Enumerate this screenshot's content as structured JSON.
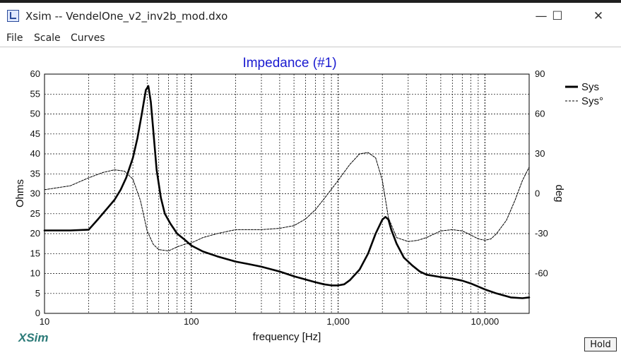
{
  "window": {
    "title": "Xsim -- VendelOne_v2_inv2b_mod.dxo",
    "minimize_glyph": "—",
    "maximize_glyph": "☐",
    "close_glyph": "✕"
  },
  "menu": [
    "File",
    "Scale",
    "Curves"
  ],
  "footer": {
    "logo": "XSim",
    "hold_label": "Hold"
  },
  "chart_data": {
    "type": "line",
    "title": "Impedance (#1)",
    "xlabel": "frequency [Hz]",
    "ylabel": "Ohms",
    "y2label": "deg",
    "x_scale": "log",
    "xlim": [
      10,
      20000
    ],
    "ylim": [
      0,
      60
    ],
    "y2lim": [
      -90,
      90
    ],
    "x_ticks": [
      10,
      100,
      1000,
      10000
    ],
    "x_tick_labels": [
      "10",
      "100",
      "1,000",
      "10,000"
    ],
    "y_ticks": [
      0,
      5,
      10,
      15,
      20,
      25,
      30,
      35,
      40,
      45,
      50,
      55,
      60
    ],
    "y_tick_labels": [
      "0",
      "5",
      "10",
      "15",
      "20",
      "25",
      "30",
      "35",
      "40",
      "45",
      "50",
      "55",
      "60"
    ],
    "y2_ticks": [
      -60,
      -30,
      0,
      30,
      60,
      90
    ],
    "y2_tick_labels": [
      "-60",
      "-30",
      "0",
      "30",
      "60",
      "90"
    ],
    "grid": true,
    "legend_position": "top-right",
    "colors": {
      "title": "#1a1ad0",
      "logo": "#2b7a78"
    },
    "series": [
      {
        "name": "Sys",
        "axis": "left",
        "style": "solid-thick",
        "x": [
          10,
          15,
          20,
          23,
          27,
          30,
          33,
          36,
          40,
          43,
          46,
          49,
          51,
          53,
          55,
          58,
          62,
          66,
          72,
          80,
          90,
          100,
          120,
          150,
          200,
          250,
          300,
          400,
          500,
          600,
          700,
          800,
          900,
          1000,
          1100,
          1200,
          1400,
          1600,
          1800,
          2000,
          2100,
          2200,
          2300,
          2500,
          2800,
          3200,
          3600,
          4000,
          5000,
          6000,
          7000,
          8000,
          10000,
          12000,
          15000,
          18000,
          20000
        ],
        "y": [
          20.8,
          20.8,
          21,
          23.5,
          26.5,
          28.5,
          31,
          34,
          39,
          44,
          50,
          56,
          57,
          53,
          46,
          36,
          29,
          25,
          22.5,
          20,
          18.5,
          17,
          15.5,
          14.3,
          13,
          12.3,
          11.7,
          10.5,
          9.3,
          8.5,
          7.8,
          7.3,
          7,
          7,
          7.3,
          8.3,
          11,
          15,
          20,
          23.5,
          24.2,
          23.5,
          21,
          17.5,
          14,
          12,
          10.5,
          9.7,
          9.1,
          8.7,
          8.2,
          7.5,
          6,
          5,
          4,
          3.8,
          4
        ]
      },
      {
        "name": "Sys°",
        "axis": "right",
        "style": "dashed-thin",
        "x": [
          10,
          15,
          20,
          25,
          30,
          35,
          40,
          45,
          50,
          55,
          60,
          70,
          80,
          90,
          100,
          120,
          150,
          200,
          300,
          400,
          500,
          600,
          700,
          800,
          1000,
          1200,
          1400,
          1600,
          1800,
          2000,
          2200,
          2500,
          3000,
          3500,
          4000,
          5000,
          6000,
          7000,
          8000,
          9000,
          10000,
          11000,
          12000,
          14000,
          16000,
          18000,
          20000
        ],
        "y": [
          3,
          6,
          12,
          16,
          18,
          17,
          11,
          -5,
          -28,
          -38,
          -42,
          -43,
          -40,
          -38,
          -37,
          -33,
          -30,
          -27,
          -27,
          -26,
          -24,
          -19,
          -12,
          -4,
          10,
          22,
          30,
          31,
          27,
          10,
          -18,
          -33,
          -36,
          -35,
          -33,
          -28,
          -27,
          -28,
          -31,
          -34,
          -35,
          -34,
          -30,
          -20,
          -5,
          10,
          20
        ]
      }
    ]
  }
}
